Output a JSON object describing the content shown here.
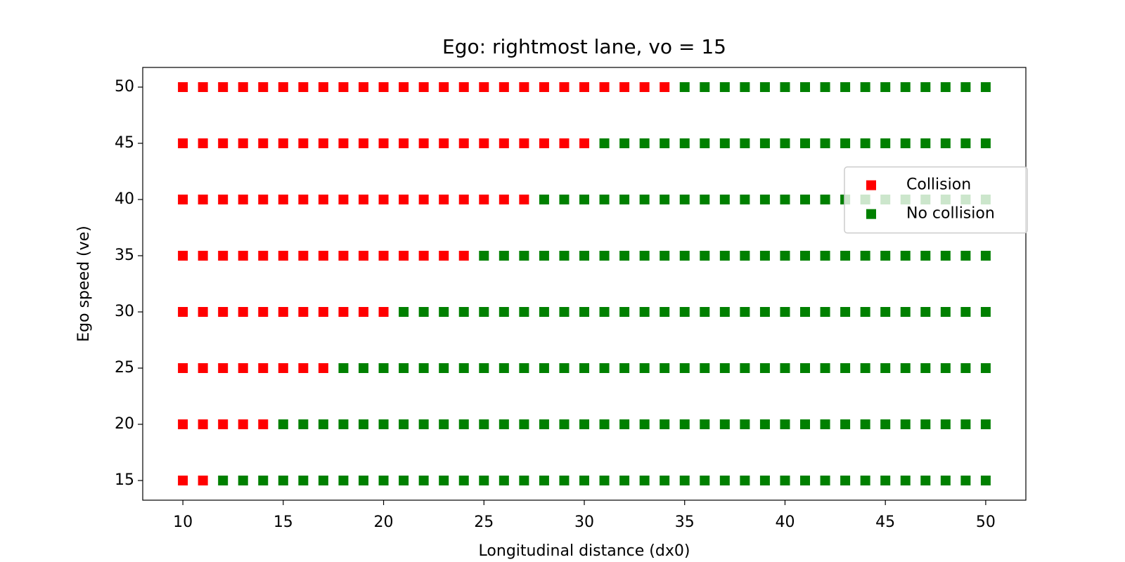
{
  "chart_data": {
    "type": "scatter",
    "title": "Ego: rightmost lane, vo = 15",
    "x_label": "Longitudinal distance (dx0)",
    "y_label": "Ego speed (ve)",
    "xlim": [
      8,
      52
    ],
    "ylim": [
      13.25,
      51.75
    ],
    "xticks": [
      10,
      15,
      20,
      25,
      30,
      35,
      40,
      45,
      50
    ],
    "yticks": [
      15,
      20,
      25,
      30,
      35,
      40,
      45,
      50
    ],
    "legend": "center right",
    "marker": "square",
    "series": [
      {
        "name": "Collision",
        "color": "#ff0000",
        "x": [
          10,
          11,
          10,
          11,
          12,
          13,
          14,
          10,
          11,
          12,
          13,
          14,
          15,
          16,
          17,
          10,
          11,
          12,
          13,
          14,
          15,
          16,
          17,
          18,
          19,
          20,
          10,
          11,
          12,
          13,
          14,
          15,
          16,
          17,
          18,
          19,
          20,
          21,
          22,
          23,
          24,
          10,
          11,
          12,
          13,
          14,
          15,
          16,
          17,
          18,
          19,
          20,
          21,
          22,
          23,
          24,
          25,
          26,
          27,
          10,
          11,
          12,
          13,
          14,
          15,
          16,
          17,
          18,
          19,
          20,
          21,
          22,
          23,
          24,
          25,
          26,
          27,
          28,
          29,
          30,
          10,
          11,
          12,
          13,
          14,
          15,
          16,
          17,
          18,
          19,
          20,
          21,
          22,
          23,
          24,
          25,
          26,
          27,
          28,
          29,
          30,
          31,
          32,
          33,
          34
        ],
        "y": [
          15,
          15,
          20,
          20,
          20,
          20,
          20,
          25,
          25,
          25,
          25,
          25,
          25,
          25,
          25,
          30,
          30,
          30,
          30,
          30,
          30,
          30,
          30,
          30,
          30,
          30,
          35,
          35,
          35,
          35,
          35,
          35,
          35,
          35,
          35,
          35,
          35,
          35,
          35,
          35,
          35,
          40,
          40,
          40,
          40,
          40,
          40,
          40,
          40,
          40,
          40,
          40,
          40,
          40,
          40,
          40,
          40,
          40,
          40,
          45,
          45,
          45,
          45,
          45,
          45,
          45,
          45,
          45,
          45,
          45,
          45,
          45,
          45,
          45,
          45,
          45,
          45,
          45,
          45,
          45,
          50,
          50,
          50,
          50,
          50,
          50,
          50,
          50,
          50,
          50,
          50,
          50,
          50,
          50,
          50,
          50,
          50,
          50,
          50,
          50,
          50,
          50,
          50,
          50,
          50
        ]
      },
      {
        "name": "No collision",
        "color": "#008000",
        "x": [
          12,
          13,
          14,
          15,
          16,
          17,
          18,
          19,
          20,
          21,
          22,
          23,
          24,
          25,
          26,
          27,
          28,
          29,
          30,
          31,
          32,
          33,
          34,
          35,
          36,
          37,
          38,
          39,
          40,
          41,
          42,
          43,
          44,
          45,
          46,
          47,
          48,
          49,
          50,
          15,
          16,
          17,
          18,
          19,
          20,
          21,
          22,
          23,
          24,
          25,
          26,
          27,
          28,
          29,
          30,
          31,
          32,
          33,
          34,
          35,
          36,
          37,
          38,
          39,
          40,
          41,
          42,
          43,
          44,
          45,
          46,
          47,
          48,
          49,
          50,
          18,
          19,
          20,
          21,
          22,
          23,
          24,
          25,
          26,
          27,
          28,
          29,
          30,
          31,
          32,
          33,
          34,
          35,
          36,
          37,
          38,
          39,
          40,
          41,
          42,
          43,
          44,
          45,
          46,
          47,
          48,
          49,
          50,
          21,
          22,
          23,
          24,
          25,
          26,
          27,
          28,
          29,
          30,
          31,
          32,
          33,
          34,
          35,
          36,
          37,
          38,
          39,
          40,
          41,
          42,
          43,
          44,
          45,
          46,
          47,
          48,
          49,
          50,
          25,
          26,
          27,
          28,
          29,
          30,
          31,
          32,
          33,
          34,
          35,
          36,
          37,
          38,
          39,
          40,
          41,
          42,
          43,
          44,
          45,
          46,
          47,
          48,
          49,
          50,
          28,
          29,
          30,
          31,
          32,
          33,
          34,
          35,
          36,
          37,
          38,
          39,
          40,
          41,
          42,
          43,
          44,
          45,
          46,
          47,
          48,
          49,
          50,
          31,
          32,
          33,
          34,
          35,
          36,
          37,
          38,
          39,
          40,
          41,
          42,
          43,
          44,
          45,
          46,
          47,
          48,
          49,
          50,
          35,
          36,
          37,
          38,
          39,
          40,
          41,
          42,
          43,
          44,
          45,
          46,
          47,
          48,
          49,
          50
        ],
        "y": [
          15,
          15,
          15,
          15,
          15,
          15,
          15,
          15,
          15,
          15,
          15,
          15,
          15,
          15,
          15,
          15,
          15,
          15,
          15,
          15,
          15,
          15,
          15,
          15,
          15,
          15,
          15,
          15,
          15,
          15,
          15,
          15,
          15,
          15,
          15,
          15,
          15,
          15,
          15,
          20,
          20,
          20,
          20,
          20,
          20,
          20,
          20,
          20,
          20,
          20,
          20,
          20,
          20,
          20,
          20,
          20,
          20,
          20,
          20,
          20,
          20,
          20,
          20,
          20,
          20,
          20,
          20,
          20,
          20,
          20,
          20,
          20,
          20,
          20,
          20,
          25,
          25,
          25,
          25,
          25,
          25,
          25,
          25,
          25,
          25,
          25,
          25,
          25,
          25,
          25,
          25,
          25,
          25,
          25,
          25,
          25,
          25,
          25,
          25,
          25,
          25,
          25,
          25,
          25,
          25,
          25,
          25,
          25,
          30,
          30,
          30,
          30,
          30,
          30,
          30,
          30,
          30,
          30,
          30,
          30,
          30,
          30,
          30,
          30,
          30,
          30,
          30,
          30,
          30,
          30,
          30,
          30,
          30,
          30,
          30,
          30,
          30,
          30,
          35,
          35,
          35,
          35,
          35,
          35,
          35,
          35,
          35,
          35,
          35,
          35,
          35,
          35,
          35,
          35,
          35,
          35,
          35,
          35,
          35,
          35,
          35,
          35,
          35,
          35,
          40,
          40,
          40,
          40,
          40,
          40,
          40,
          40,
          40,
          40,
          40,
          40,
          40,
          40,
          40,
          40,
          40,
          40,
          40,
          40,
          40,
          40,
          40,
          45,
          45,
          45,
          45,
          45,
          45,
          45,
          45,
          45,
          45,
          45,
          45,
          45,
          45,
          45,
          45,
          45,
          45,
          45,
          45,
          50,
          50,
          50,
          50,
          50,
          50,
          50,
          50,
          50,
          50,
          50,
          50,
          50,
          50,
          50,
          50
        ]
      }
    ]
  }
}
